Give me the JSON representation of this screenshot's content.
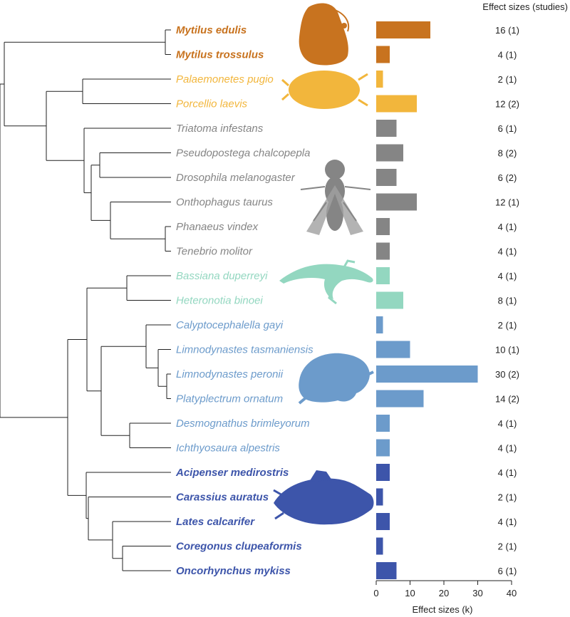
{
  "chart_data": {
    "type": "bar",
    "orientation": "horizontal",
    "title": "",
    "header_right": "Effect sizes (studies)",
    "xlabel": "Effect sizes (k)",
    "xlim": [
      0,
      40
    ],
    "xticks": [
      0,
      10,
      20,
      30,
      40
    ],
    "species": [
      {
        "name": "Mytilus edulis",
        "group": "mussels",
        "k": 16,
        "label": "16 (1)"
      },
      {
        "name": "Mytilus trossulus",
        "group": "mussels",
        "k": 4,
        "label": "4 (1)"
      },
      {
        "name": "Palaemonetes pugio",
        "group": "crustaceans",
        "k": 2,
        "label": "2 (1)"
      },
      {
        "name": "Porcellio laevis",
        "group": "crustaceans",
        "k": 12,
        "label": "12 (2)"
      },
      {
        "name": "Triatoma infestans",
        "group": "insects",
        "k": 6,
        "label": "6 (1)"
      },
      {
        "name": "Pseudopostega chalcopepla",
        "group": "insects",
        "k": 8,
        "label": "8 (2)"
      },
      {
        "name": "Drosophila melanogaster",
        "group": "insects",
        "k": 6,
        "label": "6 (2)"
      },
      {
        "name": "Onthophagus taurus",
        "group": "insects",
        "k": 12,
        "label": "12 (1)"
      },
      {
        "name": "Phanaeus vindex",
        "group": "insects",
        "k": 4,
        "label": "4 (1)"
      },
      {
        "name": "Tenebrio molitor",
        "group": "insects",
        "k": 4,
        "label": "4 (1)"
      },
      {
        "name": "Bassiana duperreyi",
        "group": "reptiles",
        "k": 4,
        "label": "4 (1)"
      },
      {
        "name": "Heteronotia binoei",
        "group": "reptiles",
        "k": 8,
        "label": "8 (1)"
      },
      {
        "name": "Calyptocephalella gayi",
        "group": "amphibians",
        "k": 2,
        "label": "2 (1)"
      },
      {
        "name": "Limnodynastes tasmaniensis",
        "group": "amphibians",
        "k": 10,
        "label": "10 (1)"
      },
      {
        "name": "Limnodynastes peronii",
        "group": "amphibians",
        "k": 30,
        "label": "30 (2)"
      },
      {
        "name": "Platyplectrum ornatum",
        "group": "amphibians",
        "k": 14,
        "label": "14 (2)"
      },
      {
        "name": "Desmognathus brimleyorum",
        "group": "amphibians",
        "k": 4,
        "label": "4 (1)"
      },
      {
        "name": "Ichthyosaura alpestris",
        "group": "amphibians",
        "k": 4,
        "label": "4 (1)"
      },
      {
        "name": "Acipenser medirostris",
        "group": "fish",
        "k": 4,
        "label": "4 (1)"
      },
      {
        "name": "Carassius auratus",
        "group": "fish",
        "k": 2,
        "label": "2 (1)"
      },
      {
        "name": "Lates calcarifer",
        "group": "fish",
        "k": 4,
        "label": "4 (1)"
      },
      {
        "name": "Coregonus clupeaformis",
        "group": "fish",
        "k": 2,
        "label": "2 (1)"
      },
      {
        "name": "Oncorhynchus mykiss",
        "group": "fish",
        "k": 6,
        "label": "6 (1)"
      }
    ],
    "group_colors": {
      "mussels": "#c8731f",
      "crustaceans": "#f2b63c",
      "insects": "#858585",
      "reptiles": "#93d7c0",
      "amphibians": "#6c9bcb",
      "fish": "#3d55aa"
    },
    "silhouette_icons": [
      "mussel-silhouette-icon",
      "isopod-silhouette-icon",
      "fly-silhouette-icon",
      "lizard-silhouette-icon",
      "frog-silhouette-icon",
      "fish-silhouette-icon"
    ]
  }
}
